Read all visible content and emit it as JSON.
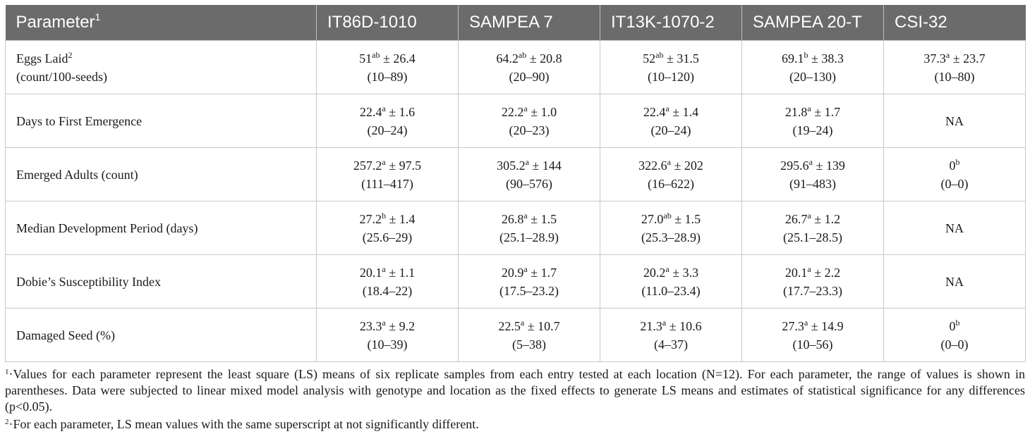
{
  "header": {
    "parameter_label": "Parameter",
    "parameter_sup": "1",
    "columns": [
      "IT86D-1010",
      "SAMPEA 7",
      "IT13K-1070-2",
      "SAMPEA 20-T",
      "CSI-32"
    ]
  },
  "rows": [
    {
      "label_line1": "Eggs Laid",
      "label_sup": "2",
      "label_line2": "(count/100-seeds)",
      "cells": [
        {
          "mean": "51",
          "sup": "ab",
          "rest": " ± 26.4",
          "range": "(10–89)"
        },
        {
          "mean": "64.2",
          "sup": "ab",
          "rest": " ± 20.8",
          "range": "(20–90)"
        },
        {
          "mean": "52",
          "sup": "ab",
          "rest": " ± 31.5",
          "range": "(10–120)"
        },
        {
          "mean": "69.1",
          "sup": "b",
          "rest": " ± 38.3",
          "range": "(20–130)"
        },
        {
          "mean": "37.3",
          "sup": "a",
          "rest": " ± 23.7",
          "range": "(10–80)"
        }
      ]
    },
    {
      "label_line1": "Days to First Emergence",
      "label_sup": "",
      "label_line2": "",
      "cells": [
        {
          "mean": "22.4",
          "sup": "a",
          "rest": " ± 1.6",
          "range": "(20–24)"
        },
        {
          "mean": "22.2",
          "sup": "a",
          "rest": " ± 1.0",
          "range": "(20–23)"
        },
        {
          "mean": "22.4",
          "sup": "a",
          "rest": " ± 1.4",
          "range": "(20–24)"
        },
        {
          "mean": "21.8",
          "sup": "a",
          "rest": " ± 1.7",
          "range": "(19–24)"
        },
        {
          "mean": "NA",
          "sup": "",
          "rest": "",
          "range": ""
        }
      ]
    },
    {
      "label_line1": "Emerged Adults (count)",
      "label_sup": "",
      "label_line2": "",
      "cells": [
        {
          "mean": "257.2",
          "sup": "a",
          "rest": " ± 97.5",
          "range": "(111–417)"
        },
        {
          "mean": "305.2",
          "sup": "a",
          "rest": " ± 144",
          "range": "(90–576)"
        },
        {
          "mean": "322.6",
          "sup": "a",
          "rest": " ± 202",
          "range": "(16–622)"
        },
        {
          "mean": "295.6",
          "sup": "a",
          "rest": " ± 139",
          "range": "(91–483)"
        },
        {
          "mean": "0",
          "sup": "b",
          "rest": "",
          "range": "(0–0)"
        }
      ]
    },
    {
      "label_line1": "Median Development Period (days)",
      "label_sup": "",
      "label_line2": "",
      "cells": [
        {
          "mean": "27.2",
          "sup": "b",
          "rest": " ± 1.4",
          "range": "(25.6–29)"
        },
        {
          "mean": "26.8",
          "sup": "a",
          "rest": " ± 1.5",
          "range": "(25.1–28.9)"
        },
        {
          "mean": "27.0",
          "sup": "ab",
          "rest": " ± 1.5",
          "range": "(25.3–28.9)"
        },
        {
          "mean": "26.7",
          "sup": "a",
          "rest": " ± 1.2",
          "range": "(25.1–28.5)"
        },
        {
          "mean": "NA",
          "sup": "",
          "rest": "",
          "range": ""
        }
      ]
    },
    {
      "label_line1": "Dobie’s Susceptibility Index",
      "label_sup": "",
      "label_line2": "",
      "cells": [
        {
          "mean": "20.1",
          "sup": "a",
          "rest": " ± 1.1",
          "range": "(18.4–22)"
        },
        {
          "mean": "20.9",
          "sup": "a",
          "rest": " ± 1.7",
          "range": "(17.5–23.2)"
        },
        {
          "mean": "20.2",
          "sup": "a",
          "rest": " ± 3.3",
          "range": "(11.0–23.4)"
        },
        {
          "mean": "20.1",
          "sup": "a",
          "rest": " ± 2.2",
          "range": "(17.7–23.3)"
        },
        {
          "mean": "NA",
          "sup": "",
          "rest": "",
          "range": ""
        }
      ]
    },
    {
      "label_line1": "Damaged Seed (%)",
      "label_sup": "",
      "label_line2": "",
      "cells": [
        {
          "mean": "23.3",
          "sup": "a",
          "rest": " ± 9.2",
          "range": "(10–39)"
        },
        {
          "mean": "22.5",
          "sup": "a",
          "rest": " ± 10.7",
          "range": "(5–38)"
        },
        {
          "mean": "21.3",
          "sup": "a",
          "rest": " ± 10.6",
          "range": "(4–37)"
        },
        {
          "mean": "27.3",
          "sup": "a",
          "rest": " ± 14.9",
          "range": "(10–56)"
        },
        {
          "mean": "0",
          "sup": "b",
          "rest": "",
          "range": "(0–0)"
        }
      ]
    }
  ],
  "footnotes": [
    {
      "marker": "1",
      "text": "·Values for each parameter represent the least square (LS) means of six replicate samples from each entry tested at each location (N=12). For each parameter, the range of values is shown in parentheses. Data were subjected to linear mixed model analysis with genotype and location as the fixed effects to generate LS means and estimates of statistical significance for any differences (p<0.05)."
    },
    {
      "marker": "2",
      "text": "·For each parameter, LS mean values with the same superscript at not significantly different."
    }
  ]
}
